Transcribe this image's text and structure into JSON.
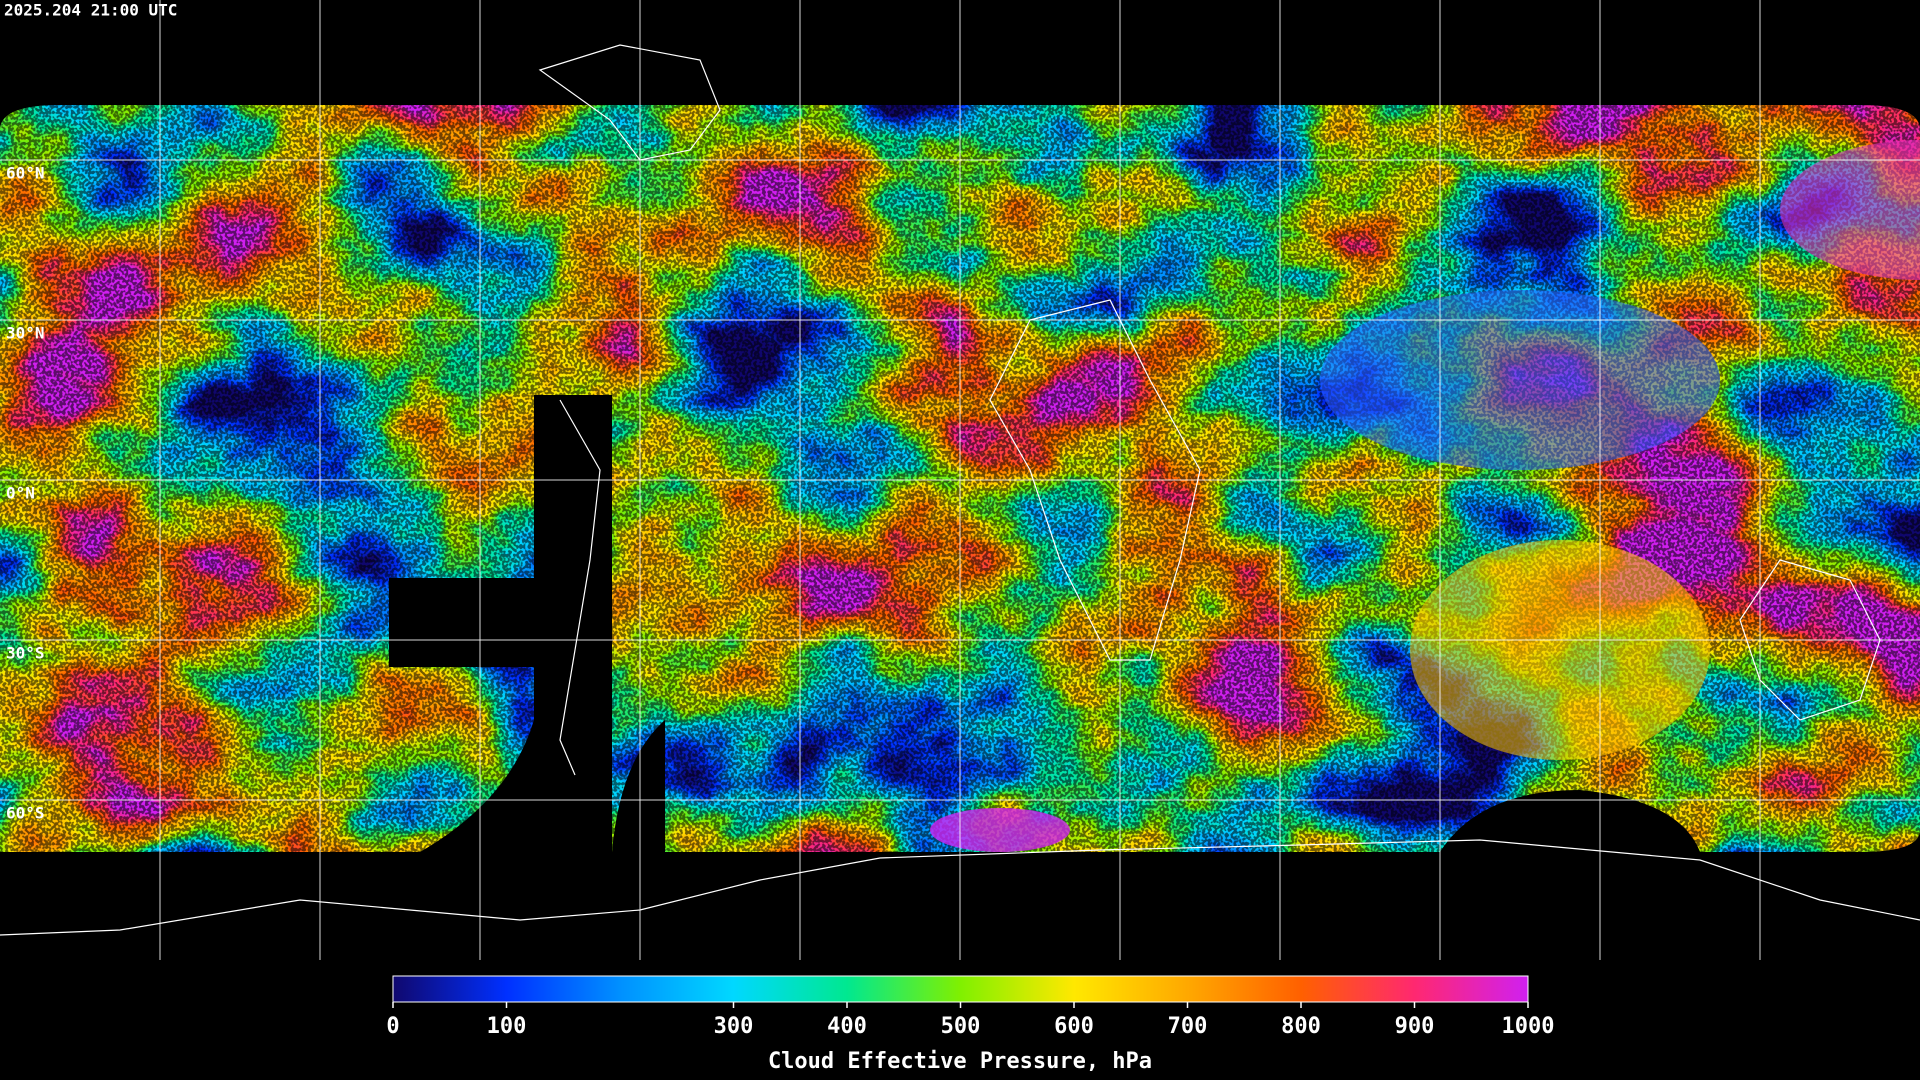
{
  "header": {
    "timestamp": "2025.204 21:00 UTC"
  },
  "map": {
    "latitude_lines": [
      {
        "value": 60,
        "label": "60°N"
      },
      {
        "value": 30,
        "label": "30°N"
      },
      {
        "value": 0,
        "label": "0°N"
      },
      {
        "value": -30,
        "label": "30°S"
      },
      {
        "value": -60,
        "label": "60°S"
      }
    ],
    "grid_color": "#ffffff"
  },
  "colorbar": {
    "title": "Cloud Effective Pressure, hPa",
    "range": [
      0,
      1000
    ],
    "ticks": [
      0,
      100,
      300,
      400,
      500,
      600,
      700,
      800,
      900,
      1000
    ],
    "colors": [
      "#10086e",
      "#0030ff",
      "#0090ff",
      "#00d8ff",
      "#00e890",
      "#80f000",
      "#ffe800",
      "#ffa800",
      "#ff6000",
      "#ff2870",
      "#d020f0"
    ]
  }
}
